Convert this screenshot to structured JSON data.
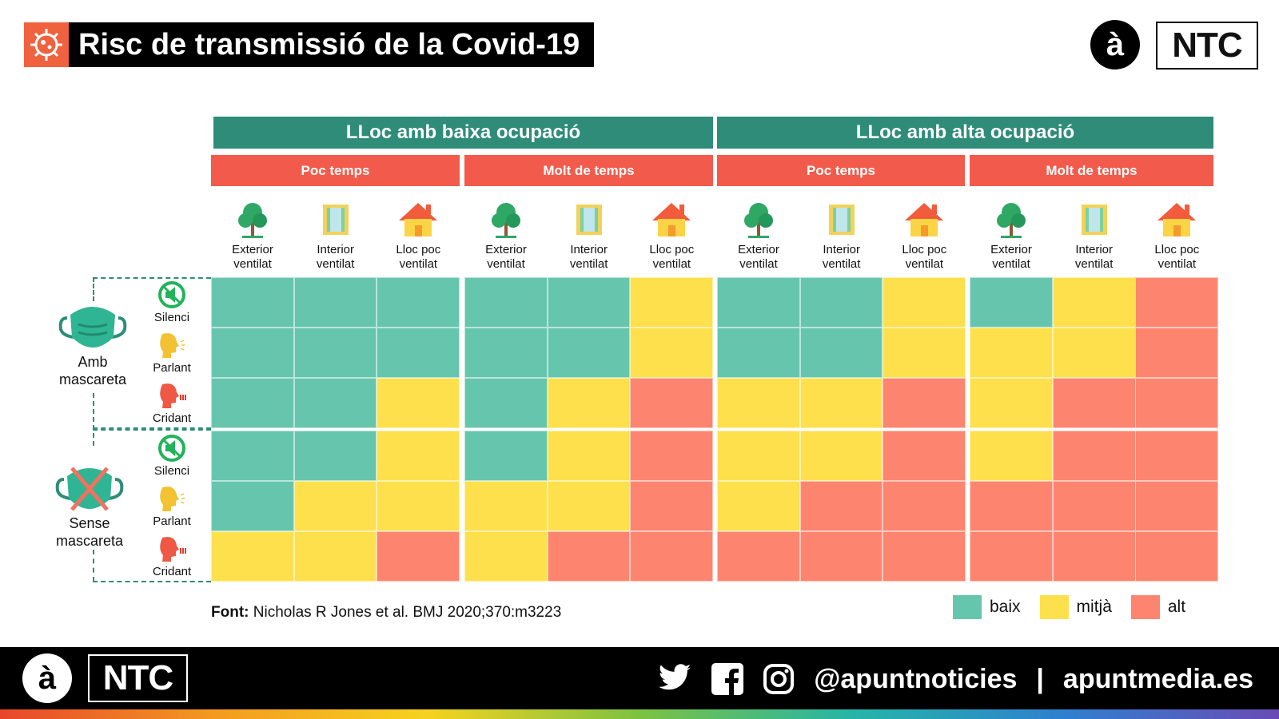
{
  "title": "Risc de transmissió de la Covid-19",
  "logo": {
    "a": "à",
    "ntc": "NTC"
  },
  "chart_data": {
    "type": "heatmap",
    "title": "Risc de transmissió de la Covid-19",
    "occupancy_groups": [
      "LLoc amb baixa ocupació",
      "LLoc amb alta ocupació"
    ],
    "time_groups": [
      "Poc temps",
      "Molt de temps",
      "Poc temps",
      "Molt de temps"
    ],
    "columns": [
      {
        "line1": "Exterior",
        "line2": "ventilat",
        "icon": "tree-icon"
      },
      {
        "line1": "Interior",
        "line2": "ventilat",
        "icon": "window-icon"
      },
      {
        "line1": "Lloc poc",
        "line2": "ventilat",
        "icon": "house-icon"
      }
    ],
    "row_groups": [
      {
        "line1": "Amb",
        "line2": "mascareta",
        "icon": "mask-icon"
      },
      {
        "line1": "Sense",
        "line2": "mascareta",
        "icon": "no-mask-icon"
      }
    ],
    "rows": [
      {
        "label": "Silenci",
        "icon": "muted-icon"
      },
      {
        "label": "Parlant",
        "icon": "speaking-head-icon"
      },
      {
        "label": "Cridant",
        "icon": "shouting-head-icon"
      }
    ],
    "levels": {
      "baix": "#66c6ad",
      "mitjà": "#fde04c",
      "alt": "#fd8570"
    },
    "legend": [
      "baix",
      "mitjà",
      "alt"
    ],
    "values": [
      [
        "baix",
        "baix",
        "baix",
        "baix",
        "baix",
        "mitjà",
        "baix",
        "baix",
        "mitjà",
        "baix",
        "mitjà",
        "alt"
      ],
      [
        "baix",
        "baix",
        "baix",
        "baix",
        "baix",
        "mitjà",
        "baix",
        "baix",
        "mitjà",
        "mitjà",
        "mitjà",
        "alt"
      ],
      [
        "baix",
        "baix",
        "mitjà",
        "baix",
        "mitjà",
        "alt",
        "mitjà",
        "mitjà",
        "alt",
        "mitjà",
        "alt",
        "alt"
      ],
      [
        "baix",
        "baix",
        "mitjà",
        "baix",
        "mitjà",
        "alt",
        "mitjà",
        "mitjà",
        "alt",
        "mitjà",
        "alt",
        "alt"
      ],
      [
        "baix",
        "mitjà",
        "mitjà",
        "mitjà",
        "mitjà",
        "alt",
        "mitjà",
        "alt",
        "alt",
        "alt",
        "alt",
        "alt"
      ],
      [
        "mitjà",
        "mitjà",
        "alt",
        "mitjà",
        "alt",
        "alt",
        "alt",
        "alt",
        "alt",
        "alt",
        "alt",
        "alt"
      ]
    ]
  },
  "footnote": {
    "label": "Font:",
    "text": "Nicholas R Jones et al. BMJ 2020;370:m3223"
  },
  "footer": {
    "handle": "@apuntnoticies",
    "separator": "|",
    "site": "apuntmedia.es"
  },
  "colors": {
    "header_teal": "#2e8c79",
    "header_red": "#f25b4b",
    "title_icon": "#f0623e"
  }
}
